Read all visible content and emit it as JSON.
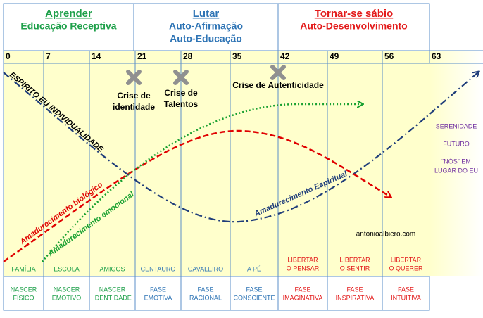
{
  "header": {
    "columns": [
      {
        "title": "Aprender",
        "lines": [
          "Educação Receptiva"
        ]
      },
      {
        "title": "Lutar",
        "lines": [
          "Auto-Afirmação",
          "Auto-Educação"
        ]
      },
      {
        "title": "Tornar-se sábio",
        "lines": [
          "Auto-Desenvolvimento"
        ]
      }
    ]
  },
  "ages": [
    0,
    7,
    14,
    21,
    28,
    35,
    42,
    49,
    56,
    63
  ],
  "crises": [
    [
      "Crise de",
      "identidade"
    ],
    [
      "Crise de",
      "Talentos"
    ],
    [
      "Crise de Autenticidade"
    ]
  ],
  "curves": {
    "spirit": "ESPÍRITO EU INDIVIDUALIDADE",
    "biological": "Amadurecimento biológico",
    "emotional": "Amadurecimento emocional",
    "spiritual": "Amadurecimento Espiritual"
  },
  "future": [
    "SERENIDADE",
    "FUTURO",
    "“NÓS” EM",
    "LUGAR DO EU"
  ],
  "credit": "antonioalbiero.com",
  "stages": [
    [
      "FAMÍLIA"
    ],
    [
      "ESCOLA"
    ],
    [
      "AMIGOS"
    ],
    [
      "CENTAURO"
    ],
    [
      "CAVALEIRO"
    ],
    [
      "A PÉ"
    ],
    [
      "LIBERTAR",
      "O PENSAR"
    ],
    [
      "LIBERTAR",
      "O SENTIR"
    ],
    [
      "LIBERTAR",
      "O QUERER"
    ]
  ],
  "phases": [
    [
      "NASCER",
      "FÍSICO"
    ],
    [
      "NASCER",
      "EMOTIVO"
    ],
    [
      "NASCER",
      "IDENTIDADE"
    ],
    [
      "FASE",
      "EMOTIVA"
    ],
    [
      "FASE",
      "RACIONAL"
    ],
    [
      "FASE",
      "CONSCIENTE"
    ],
    [
      "FASE",
      "IMAGINATIVA"
    ],
    [
      "FASE",
      "INSPIRATIVA"
    ],
    [
      "FASE",
      "INTUITIVA"
    ]
  ]
}
